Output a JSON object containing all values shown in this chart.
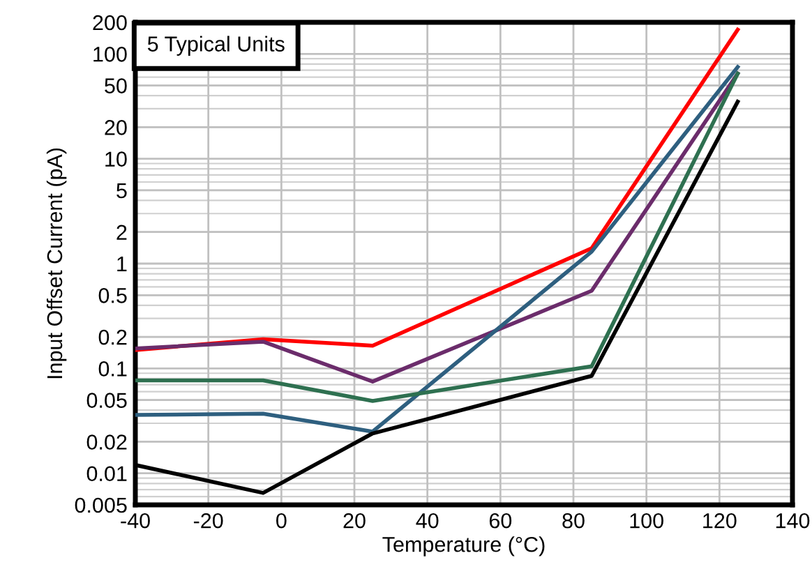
{
  "chart_data": {
    "type": "line",
    "xlabel": "Temperature (°C)",
    "ylabel": "Input Offset Current (pA)",
    "annotations": [
      "5 Typical Units"
    ],
    "x": [
      -40,
      -5,
      25,
      85,
      125
    ],
    "series": [
      {
        "color": "#ff0000",
        "values": [
          0.15,
          0.19,
          0.165,
          1.4,
          170
        ]
      },
      {
        "color": "#6b2c6b",
        "values": [
          0.155,
          0.18,
          0.075,
          0.55,
          65
        ]
      },
      {
        "color": "#2e5f7f",
        "values": [
          0.036,
          0.037,
          0.025,
          1.3,
          75
        ]
      },
      {
        "color": "#2e7050",
        "values": [
          0.077,
          0.077,
          0.049,
          0.105,
          65
        ]
      },
      {
        "color": "#000000",
        "values": [
          0.012,
          0.0065,
          0.024,
          0.085,
          35
        ]
      }
    ],
    "log": "y",
    "xlim": [
      -40,
      140
    ],
    "ylim": [
      0.005,
      200
    ],
    "xticks": [
      -40,
      -20,
      0,
      20,
      40,
      60,
      80,
      100,
      120,
      140
    ],
    "yticks": [
      0.005,
      0.01,
      0.02,
      0.05,
      0.1,
      0.2,
      0.5,
      1,
      2,
      5,
      10,
      20,
      50,
      100,
      200
    ],
    "grid": true,
    "marker": "none",
    "line_style": "solid"
  }
}
